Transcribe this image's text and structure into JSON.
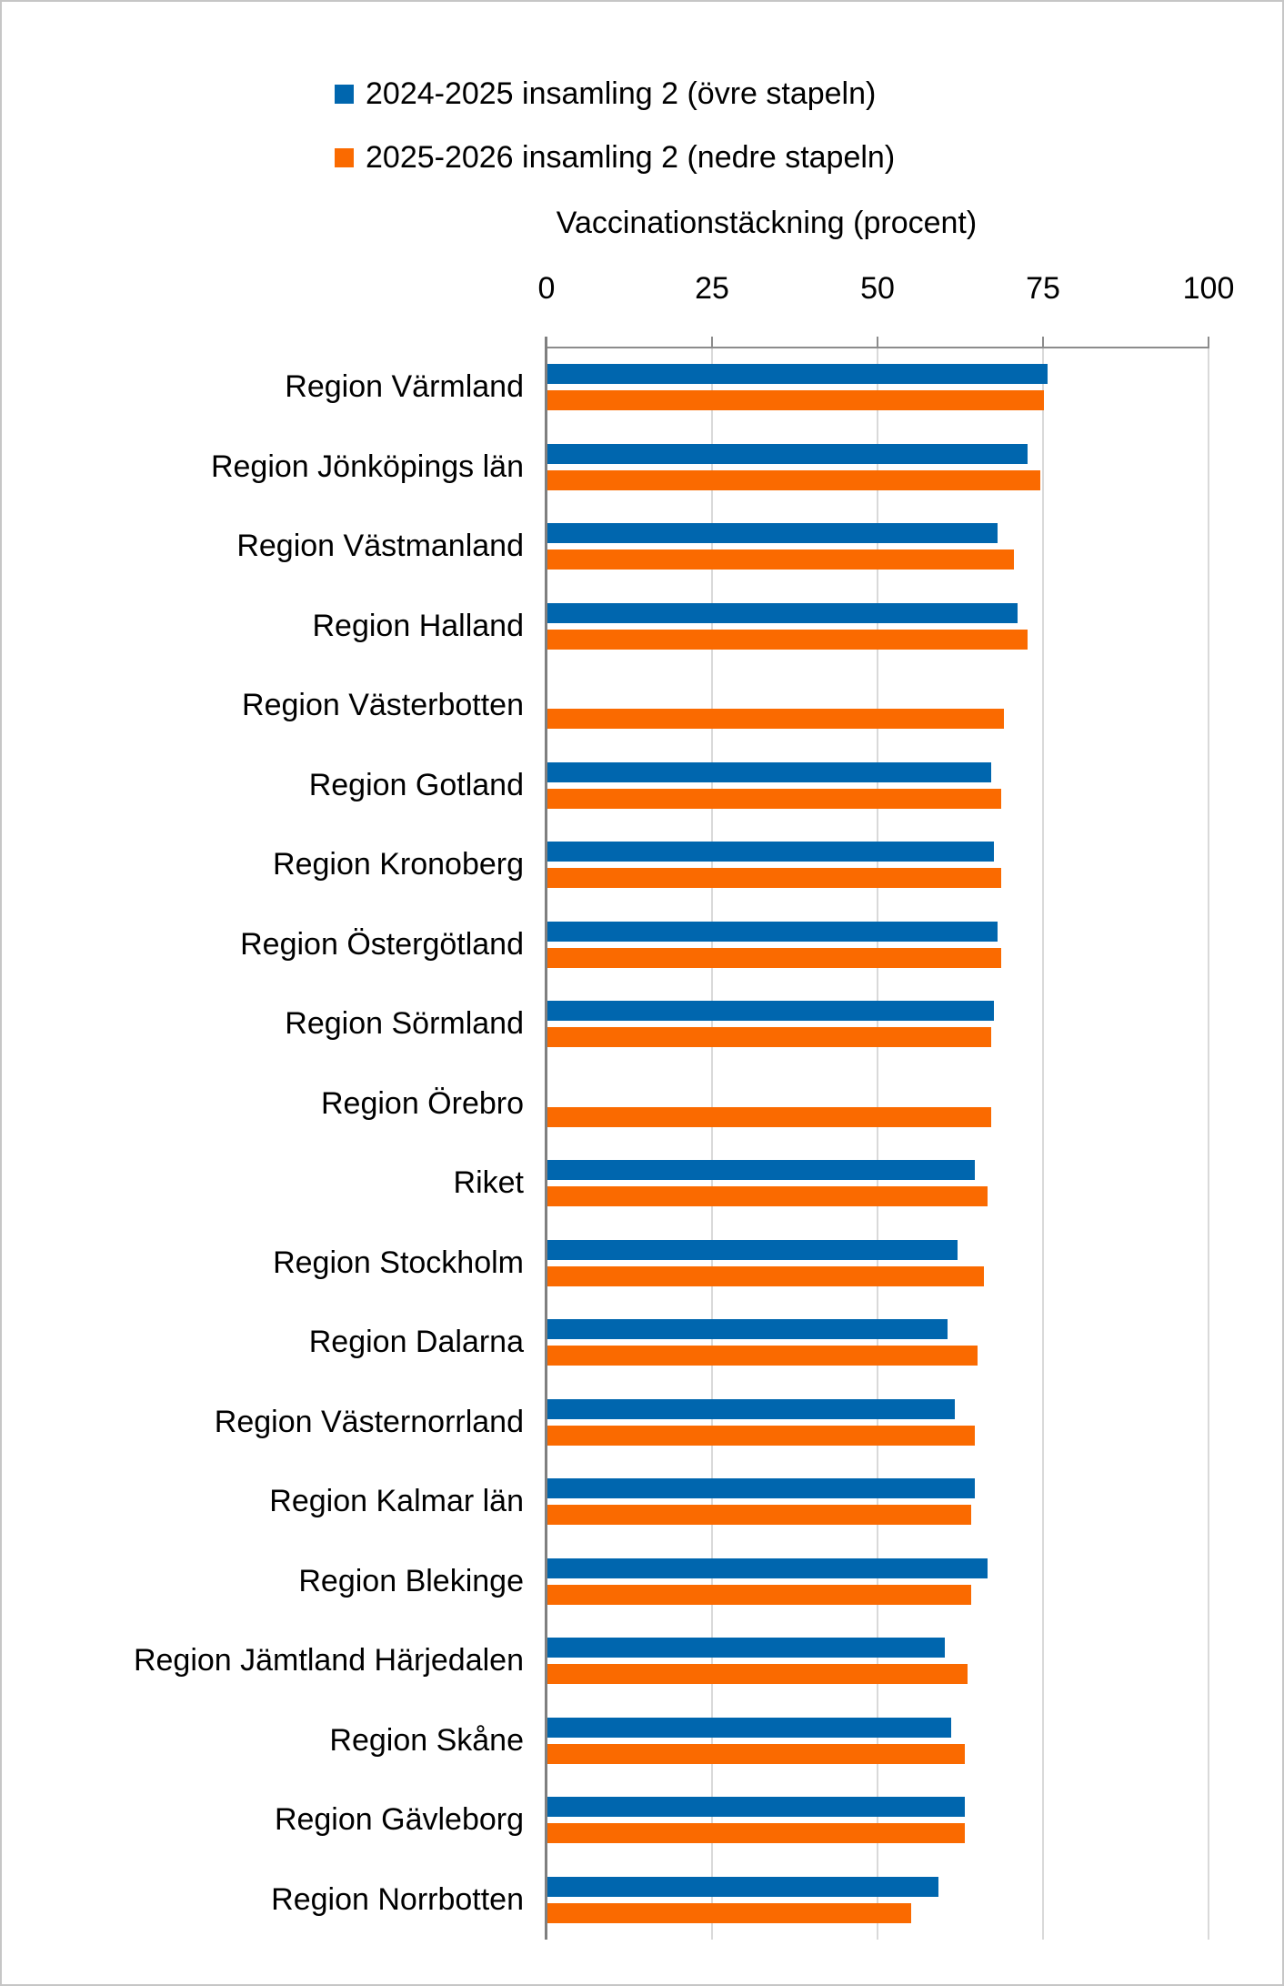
{
  "legend": [
    {
      "label": "2024-2025 insamling 2 (övre stapeln)",
      "color": "#0066AE"
    },
    {
      "label": "2025-2026 insamling 2 (nedre stapeln)",
      "color": "#FA6A00"
    }
  ],
  "chart_data": {
    "type": "bar",
    "orientation": "horizontal",
    "title": "Vaccinationstäckning (procent)",
    "xlabel": "Vaccinationstäckning (procent)",
    "xlim": [
      0,
      100
    ],
    "x_ticks": [
      0,
      25,
      50,
      75,
      100
    ],
    "grid": "vertical-light-gray",
    "legend_position": "top",
    "axis_color": "#7F7F7F",
    "gridline_color": "#D9D9D9",
    "categories": [
      "Region Värmland",
      "Region Jönköpings län",
      "Region Västmanland",
      "Region Halland",
      "Region Västerbotten",
      "Region Gotland",
      "Region Kronoberg",
      "Region Östergötland",
      "Region Sörmland",
      "Region Örebro",
      "Riket",
      "Region Stockholm",
      "Region Dalarna",
      "Region Västernorrland",
      "Region Kalmar län",
      "Region Blekinge",
      "Region Jämtland Härjedalen",
      "Region Skåne",
      "Region Gävleborg",
      "Region Norrbotten"
    ],
    "series": [
      {
        "name": "2024-2025 insamling 2 (övre stapeln)",
        "color": "#0066AE",
        "values": [
          75.5,
          72.5,
          68,
          71,
          null,
          67,
          67.5,
          68,
          67.5,
          null,
          64.5,
          62,
          60.5,
          61.5,
          64.5,
          66.5,
          60,
          61,
          63,
          59
        ]
      },
      {
        "name": "2025-2026 insamling 2 (nedre stapeln)",
        "color": "#FA6A00",
        "values": [
          75,
          74.5,
          70.5,
          72.5,
          69,
          68.5,
          68.5,
          68.5,
          67,
          67,
          66.5,
          66,
          65,
          64.5,
          64,
          64,
          63.5,
          63,
          63,
          55
        ]
      }
    ]
  }
}
